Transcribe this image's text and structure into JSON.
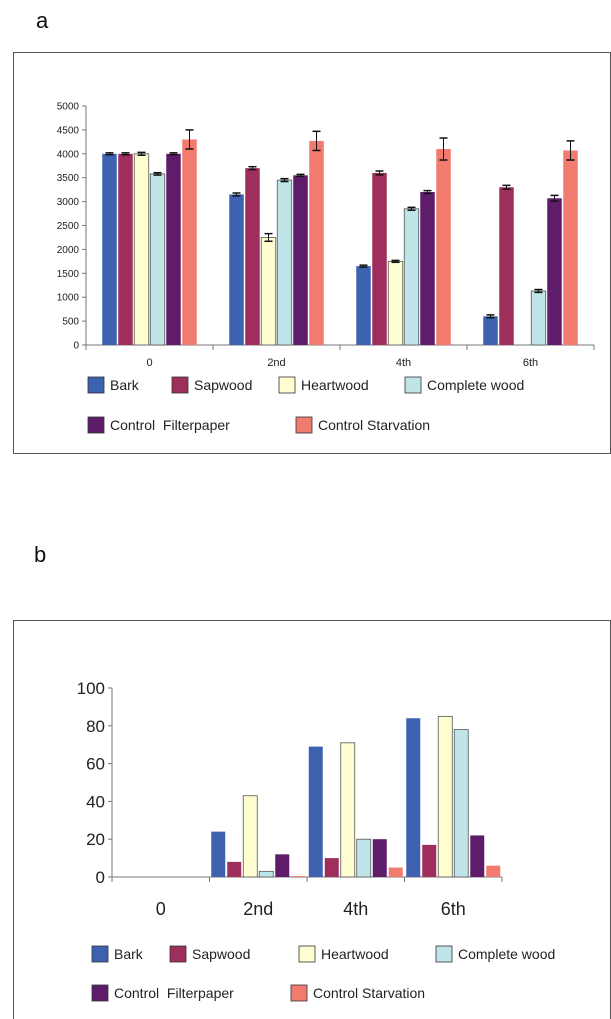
{
  "panels": {
    "a": "a",
    "b": "b"
  },
  "series_colors": [
    "#3d62b0",
    "#9e2f5c",
    "#fefed0",
    "#bfe5e8",
    "#5e1c6a",
    "#f07b6e"
  ],
  "chart_data": [
    {
      "type": "bar",
      "panel": "a",
      "categories": [
        "0",
        "2nd",
        "4th",
        "6th"
      ],
      "ylim": [
        0,
        5000
      ],
      "yticks": [
        0,
        500,
        1000,
        1500,
        2000,
        2500,
        3000,
        3500,
        4000,
        4500,
        5000
      ],
      "legend": "bottom",
      "grid": false,
      "error_bars": true,
      "series": [
        {
          "name": "Bark",
          "values": [
            4000,
            3150,
            1650,
            600
          ],
          "errors": [
            20,
            30,
            20,
            30
          ]
        },
        {
          "name": "Sapwood",
          "values": [
            4000,
            3700,
            3600,
            3300
          ],
          "errors": [
            20,
            30,
            40,
            40
          ]
        },
        {
          "name": "Heartwood",
          "values": [
            4000,
            2250,
            1750,
            null
          ],
          "errors": [
            30,
            80,
            20,
            null
          ]
        },
        {
          "name": "Complete wood",
          "values": [
            3580,
            3450,
            2850,
            1130
          ],
          "errors": [
            25,
            30,
            30,
            30
          ]
        },
        {
          "name": "Control  Filterpaper",
          "values": [
            4000,
            3550,
            3200,
            3070
          ],
          "errors": [
            20,
            20,
            30,
            60
          ]
        },
        {
          "name": "Control Starvation",
          "values": [
            4300,
            4270,
            4100,
            4070
          ],
          "errors": [
            200,
            200,
            230,
            200
          ]
        }
      ]
    },
    {
      "type": "bar",
      "panel": "b",
      "categories": [
        "0",
        "2nd",
        "4th",
        "6th"
      ],
      "ylim": [
        0,
        100
      ],
      "yticks": [
        0,
        20,
        40,
        60,
        80,
        100
      ],
      "legend": "bottom",
      "grid": false,
      "series": [
        {
          "name": "Bark",
          "values": [
            0,
            24,
            69,
            84
          ]
        },
        {
          "name": "Sapwood",
          "values": [
            0,
            8,
            10,
            17
          ]
        },
        {
          "name": "Heartwood",
          "values": [
            0,
            43,
            71,
            85
          ]
        },
        {
          "name": "Complete wood",
          "values": [
            0,
            3,
            20,
            78
          ]
        },
        {
          "name": "Control  Filterpaper",
          "values": [
            0,
            12,
            20,
            22
          ]
        },
        {
          "name": "Control Starvation",
          "values": [
            0,
            0.5,
            5,
            6
          ]
        }
      ]
    }
  ]
}
